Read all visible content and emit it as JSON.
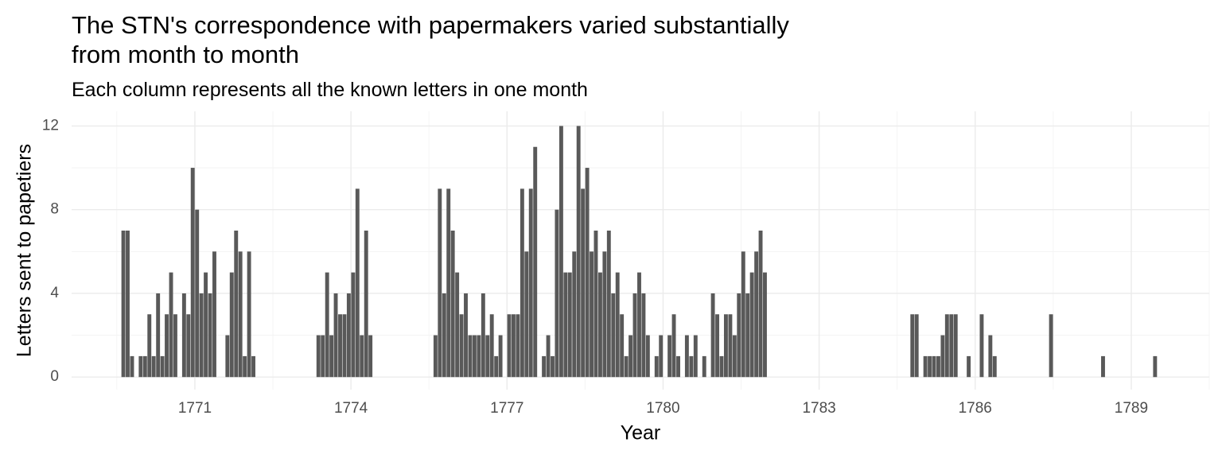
{
  "chart_data": {
    "type": "bar",
    "title": [
      "The STN's correspondence with papermakers varied substantially",
      "from month to month"
    ],
    "subtitle": "Each column represents all the known letters in one month",
    "x_label": "Year",
    "y_label": "Letters sent to papetiers",
    "color": "#595959",
    "grid": true,
    "xlim": [
      1768.63,
      1790.5
    ],
    "xticks": [
      1771,
      1774,
      1777,
      1780,
      1783,
      1786,
      1789
    ],
    "ylim": [
      -0.6,
      12.7
    ],
    "yticks": [
      0,
      4,
      8,
      12
    ],
    "x": [
      1769.625,
      1769.708,
      1769.792,
      1769.958,
      1770.042,
      1770.125,
      1770.208,
      1770.292,
      1770.375,
      1770.458,
      1770.542,
      1770.625,
      1770.792,
      1770.875,
      1770.958,
      1771.042,
      1771.125,
      1771.208,
      1771.292,
      1771.375,
      1771.625,
      1771.708,
      1771.792,
      1771.875,
      1771.958,
      1772.042,
      1772.125,
      1773.375,
      1773.458,
      1773.542,
      1773.625,
      1773.708,
      1773.792,
      1773.875,
      1773.958,
      1774.042,
      1774.125,
      1774.208,
      1774.292,
      1774.375,
      1775.625,
      1775.708,
      1775.792,
      1775.875,
      1775.958,
      1776.042,
      1776.125,
      1776.208,
      1776.292,
      1776.375,
      1776.458,
      1776.542,
      1776.625,
      1776.708,
      1776.792,
      1776.875,
      1777.042,
      1777.125,
      1777.208,
      1777.292,
      1777.375,
      1777.458,
      1777.542,
      1777.708,
      1777.792,
      1777.875,
      1777.958,
      1778.042,
      1778.125,
      1778.208,
      1778.292,
      1778.375,
      1778.458,
      1778.542,
      1778.625,
      1778.708,
      1778.792,
      1778.875,
      1778.958,
      1779.042,
      1779.125,
      1779.208,
      1779.292,
      1779.375,
      1779.458,
      1779.542,
      1779.625,
      1779.708,
      1779.875,
      1779.958,
      1780.125,
      1780.208,
      1780.292,
      1780.458,
      1780.542,
      1780.625,
      1780.792,
      1780.958,
      1781.042,
      1781.125,
      1781.208,
      1781.292,
      1781.375,
      1781.458,
      1781.542,
      1781.625,
      1781.708,
      1781.792,
      1781.875,
      1781.958,
      1784.792,
      1784.875,
      1785.042,
      1785.125,
      1785.208,
      1785.292,
      1785.375,
      1785.458,
      1785.542,
      1785.625,
      1785.875,
      1786.125,
      1786.292,
      1786.375,
      1787.458,
      1788.458,
      1789.458
    ],
    "values": [
      7,
      7,
      1,
      1,
      1,
      3,
      1,
      4,
      1,
      3,
      5,
      3,
      4,
      3,
      10,
      8,
      4,
      5,
      4,
      6,
      2,
      5,
      7,
      6,
      1,
      6,
      1,
      2,
      2,
      5,
      2,
      4,
      3,
      3,
      4,
      5,
      9,
      2,
      7,
      2,
      2,
      9,
      4,
      9,
      7,
      5,
      3,
      4,
      2,
      2,
      2,
      4,
      2,
      3,
      1,
      2,
      3,
      3,
      3,
      9,
      6,
      9,
      11,
      1,
      2,
      1,
      8,
      12,
      5,
      5,
      6,
      12,
      9,
      10,
      6,
      7,
      5,
      6,
      7,
      4,
      5,
      3,
      1,
      2,
      4,
      5,
      4,
      2,
      1,
      2,
      2,
      3,
      1,
      2,
      1,
      2,
      1,
      4,
      3,
      1,
      3,
      3,
      2,
      4,
      6,
      4,
      5,
      6,
      7,
      5,
      3,
      3,
      1,
      1,
      1,
      1,
      2,
      3,
      3,
      3,
      1,
      3,
      2,
      1,
      3,
      1,
      1
    ]
  }
}
